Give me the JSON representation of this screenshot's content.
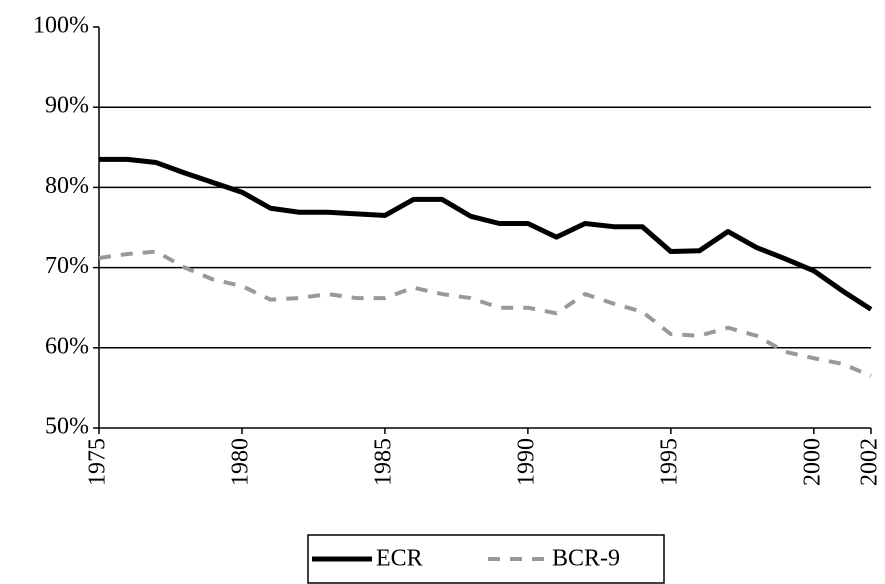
{
  "chart_data": {
    "type": "line",
    "x": [
      1975,
      1976,
      1977,
      1978,
      1979,
      1980,
      1981,
      1982,
      1983,
      1984,
      1985,
      1986,
      1987,
      1988,
      1989,
      1990,
      1991,
      1992,
      1993,
      1994,
      1995,
      1996,
      1997,
      1998,
      1999,
      2000,
      2001,
      2002
    ],
    "series": [
      {
        "name": "ECR",
        "color": "#000000",
        "dash": "solid",
        "values": [
          83.5,
          83.5,
          83.1,
          81.8,
          80.6,
          79.4,
          77.4,
          76.9,
          76.9,
          76.7,
          76.5,
          78.5,
          78.5,
          76.4,
          75.5,
          75.5,
          73.8,
          75.5,
          75.1,
          75.1,
          72.0,
          72.1,
          74.5,
          72.5,
          71.1,
          69.6,
          67.1,
          64.8
        ]
      },
      {
        "name": "BCR-9",
        "color": "#999999",
        "dash": "dashed",
        "values": [
          71.2,
          71.7,
          72.0,
          70.0,
          68.5,
          67.7,
          66.0,
          66.2,
          66.7,
          66.2,
          66.2,
          67.5,
          66.7,
          66.2,
          65.0,
          65.0,
          64.3,
          66.7,
          65.5,
          64.5,
          61.7,
          61.5,
          62.5,
          61.5,
          59.5,
          58.7,
          58.0,
          56.5
        ]
      }
    ],
    "xlim": [
      1975,
      2002
    ],
    "xticks": [
      1975,
      1980,
      1985,
      1990,
      1995,
      2000,
      2002
    ],
    "ylim": [
      50,
      100
    ],
    "yticks": [
      {
        "value": 50,
        "label": "50%"
      },
      {
        "value": 60,
        "label": "60%"
      },
      {
        "value": 70,
        "label": "70%"
      },
      {
        "value": 80,
        "label": "80%"
      },
      {
        "value": 90,
        "label": "90%"
      },
      {
        "value": 100,
        "label": "100%"
      }
    ],
    "grid": true,
    "legend": "bottom"
  }
}
